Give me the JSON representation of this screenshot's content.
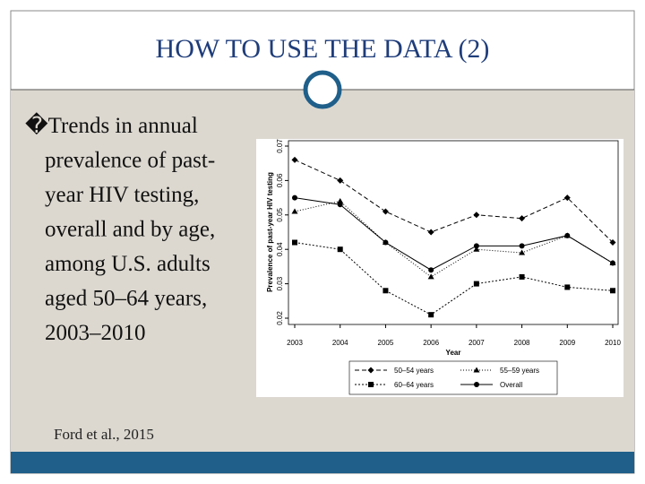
{
  "slide": {
    "title": "HOW TO USE THE DATA (2)",
    "bullet_lines": [
      "�Trends in annual",
      "prevalence of past-",
      "year HIV testing,",
      "overall and by age,",
      "among U.S. adults",
      "aged 50–64 years,",
      "2003–2010"
    ],
    "citation": "Ford et al., 2015"
  },
  "chart_data": {
    "type": "line",
    "x": [
      2003,
      2004,
      2005,
      2006,
      2007,
      2008,
      2009,
      2010
    ],
    "xlim": [
      2003,
      2010
    ],
    "xticks": [
      2003,
      2004,
      2005,
      2006,
      2007,
      2008,
      2009,
      2010
    ],
    "ylim": [
      0.02,
      0.07
    ],
    "yticks": [
      0.02,
      0.03,
      0.04,
      0.05,
      0.06,
      0.07
    ],
    "xlabel": "Year",
    "ylabel": "Prevalence of past-year HIV testing",
    "series": [
      {
        "name": "50–54 years",
        "color": "#000000",
        "linestyle": "dashed",
        "marker": "diamond",
        "values": [
          0.066,
          0.06,
          0.051,
          0.045,
          0.05,
          0.049,
          0.055,
          0.042
        ]
      },
      {
        "name": "55–59 years",
        "color": "#000000",
        "linestyle": "dotted",
        "marker": "triangle",
        "values": [
          0.051,
          0.054,
          0.042,
          0.032,
          0.04,
          0.039,
          0.044,
          0.036
        ]
      },
      {
        "name": "60–64 years",
        "color": "#000000",
        "linestyle": "dashdot",
        "marker": "square",
        "values": [
          0.042,
          0.04,
          0.028,
          0.021,
          0.03,
          0.032,
          0.029,
          0.028
        ]
      },
      {
        "name": "Overall",
        "color": "#000000",
        "linestyle": "solid",
        "marker": "circle",
        "values": [
          0.055,
          0.053,
          0.042,
          0.034,
          0.041,
          0.041,
          0.044,
          0.036
        ]
      }
    ]
  }
}
